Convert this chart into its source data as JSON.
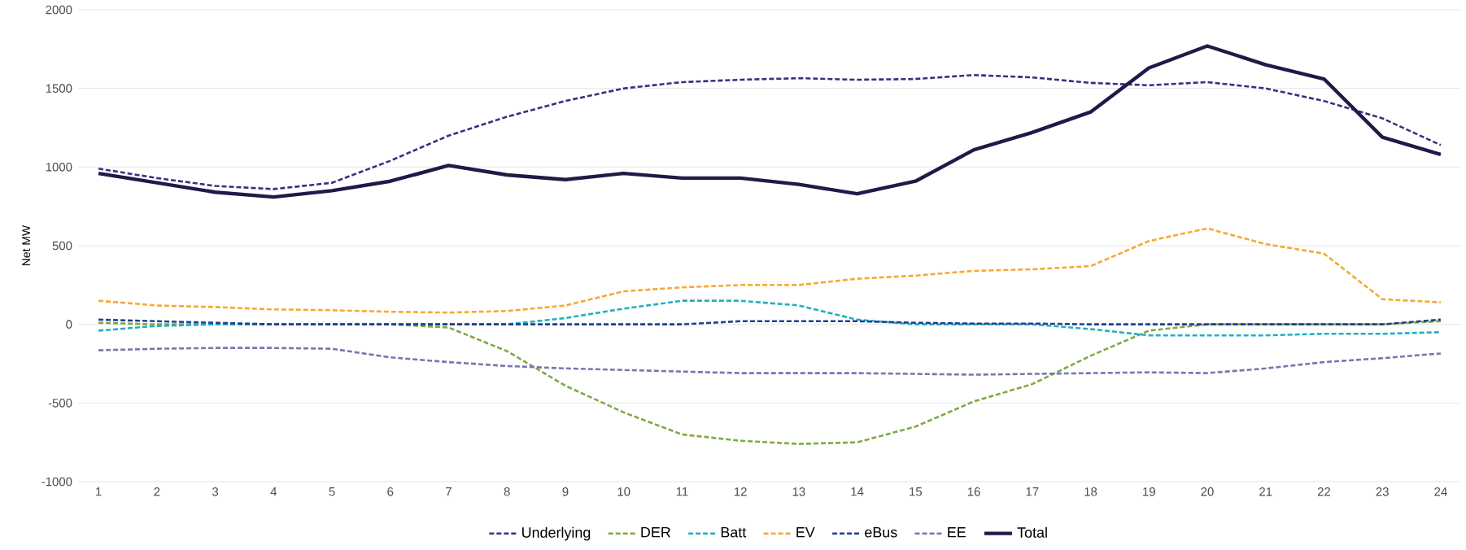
{
  "chart_data": {
    "type": "line",
    "ylabel": "Net MW",
    "categories": [
      "1",
      "2",
      "3",
      "4",
      "5",
      "6",
      "7",
      "8",
      "9",
      "10",
      "11",
      "12",
      "13",
      "14",
      "15",
      "16",
      "17",
      "18",
      "19",
      "20",
      "21",
      "22",
      "23",
      "24"
    ],
    "ylim": [
      -1000,
      2000
    ],
    "yticks": [
      -1000,
      -500,
      0,
      500,
      1000,
      1500,
      2000
    ],
    "grid": "y",
    "legend": "bottom",
    "marker": "none",
    "series": [
      {
        "name": "Underlying",
        "color": "#3b2e7e",
        "line_style": "dashed",
        "values": [
          990,
          930,
          880,
          860,
          900,
          1040,
          1200,
          1320,
          1420,
          1500,
          1540,
          1555,
          1565,
          1555,
          1560,
          1585,
          1570,
          1535,
          1520,
          1540,
          1500,
          1420,
          1310,
          1140
        ]
      },
      {
        "name": "DER",
        "color": "#7faa3f",
        "line_style": "dashed",
        "values": [
          10,
          0,
          0,
          0,
          0,
          0,
          -20,
          -170,
          -390,
          -560,
          -700,
          -740,
          -760,
          -750,
          -650,
          -490,
          -380,
          -200,
          -40,
          0,
          0,
          0,
          0,
          20
        ]
      },
      {
        "name": "Batt",
        "color": "#20b0c0",
        "line_style": "dashed",
        "values": [
          -40,
          -10,
          0,
          0,
          0,
          0,
          0,
          0,
          40,
          100,
          150,
          150,
          120,
          30,
          0,
          0,
          0,
          -30,
          -70,
          -70,
          -70,
          -60,
          -60,
          -50
        ]
      },
      {
        "name": "EV",
        "color": "#f7a832",
        "line_style": "dashed",
        "values": [
          150,
          120,
          110,
          95,
          90,
          80,
          75,
          85,
          120,
          210,
          235,
          250,
          250,
          290,
          310,
          340,
          350,
          370,
          530,
          610,
          510,
          450,
          160,
          140
        ]
      },
      {
        "name": "eBus",
        "color": "#1f3f8f",
        "line_style": "dashed",
        "values": [
          30,
          20,
          10,
          0,
          0,
          0,
          0,
          0,
          0,
          0,
          0,
          20,
          20,
          20,
          10,
          5,
          5,
          0,
          0,
          0,
          0,
          0,
          0,
          30
        ]
      },
      {
        "name": "EE",
        "color": "#7676b0",
        "line_style": "dashed",
        "values": [
          -165,
          -155,
          -150,
          -150,
          -155,
          -210,
          -240,
          -265,
          -280,
          -290,
          -300,
          -310,
          -310,
          -310,
          -315,
          -320,
          -315,
          -310,
          -305,
          -310,
          -280,
          -240,
          -215,
          -185
        ]
      },
      {
        "name": "Total",
        "color": "#1f1a48",
        "line_style": "solid",
        "values": [
          960,
          900,
          840,
          810,
          850,
          910,
          1010,
          950,
          920,
          960,
          930,
          930,
          890,
          830,
          910,
          1110,
          1220,
          1350,
          1630,
          1770,
          1650,
          1560,
          1190,
          1080
        ]
      }
    ]
  }
}
